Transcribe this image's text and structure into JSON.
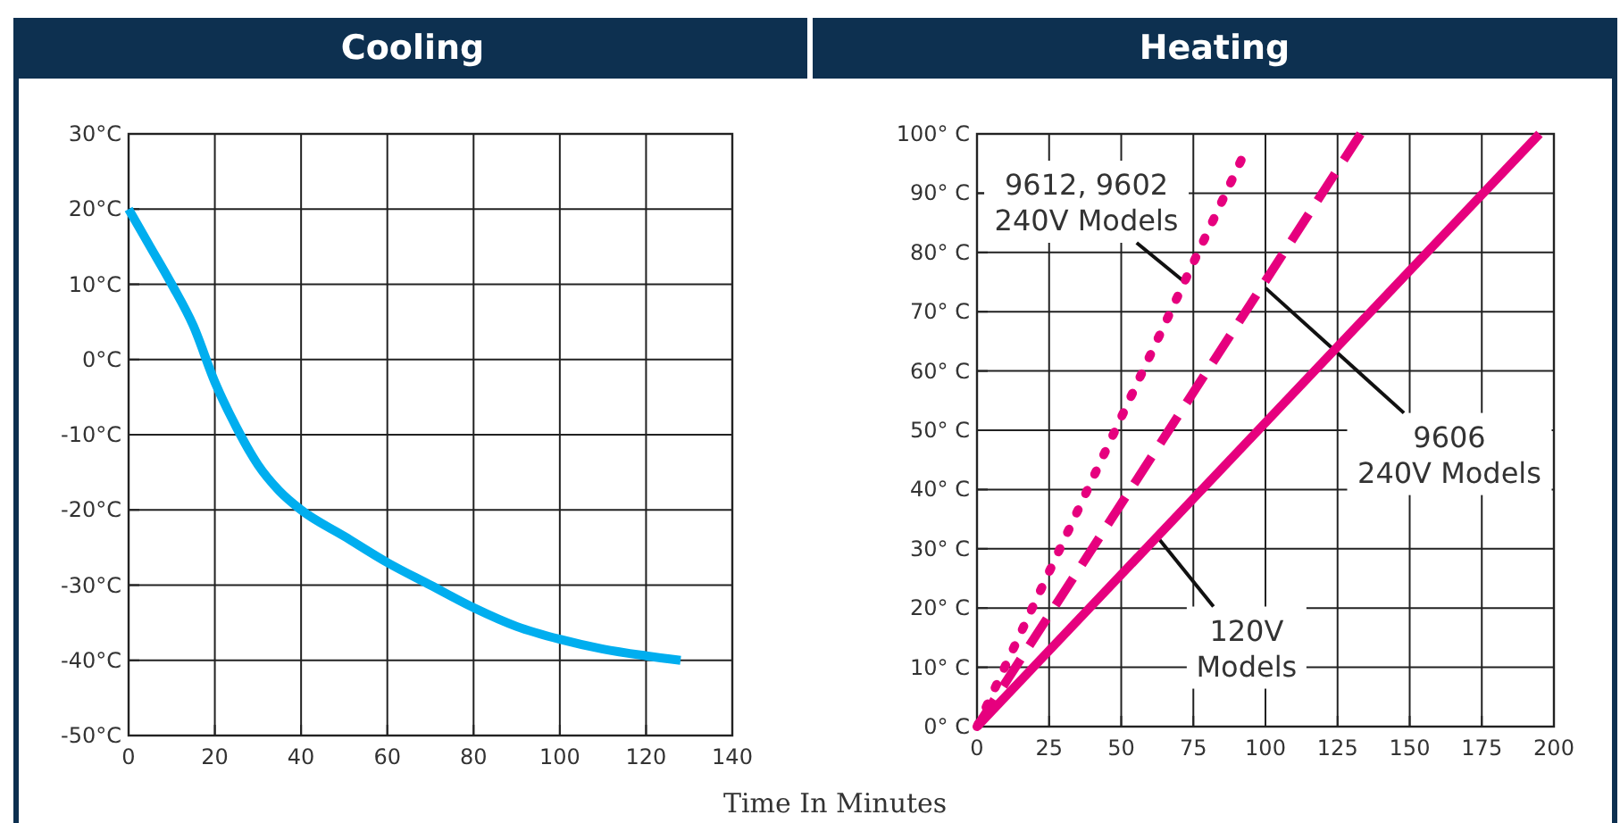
{
  "chart_data": [
    {
      "type": "line",
      "title": "Cooling",
      "xlabel": "Time In Minutes",
      "xlim": [
        0,
        140
      ],
      "xticks": [
        0,
        20,
        40,
        60,
        80,
        100,
        120,
        140
      ],
      "ylim": [
        -50,
        30
      ],
      "yticks": [
        {
          "value": -50,
          "label": "-50°C"
        },
        {
          "value": -40,
          "label": "-40°C"
        },
        {
          "value": -30,
          "label": "-30°C"
        },
        {
          "value": -20,
          "label": "-20°C"
        },
        {
          "value": -10,
          "label": "-10°C"
        },
        {
          "value": 0,
          "label": "0°C"
        },
        {
          "value": 10,
          "label": "10°C"
        },
        {
          "value": 20,
          "label": "20°C"
        },
        {
          "value": 30,
          "label": "30°C"
        }
      ],
      "grid": true,
      "series": [
        {
          "color": "#00aeef",
          "line_style": "solid",
          "x": [
            0,
            5,
            10,
            15,
            20,
            25,
            30,
            35,
            40,
            50,
            60,
            70,
            80,
            90,
            100,
            110,
            120,
            128
          ],
          "values": [
            20,
            15,
            10,
            4.5,
            -3,
            -9,
            -14,
            -17.5,
            -20,
            -23.5,
            -27,
            -30,
            -33,
            -35.5,
            -37.2,
            -38.5,
            -39.4,
            -40
          ]
        }
      ]
    },
    {
      "type": "line",
      "title": "Heating",
      "xlim": [
        0,
        200
      ],
      "xticks": [
        0,
        25,
        50,
        75,
        100,
        125,
        150,
        175,
        200
      ],
      "ylim": [
        0,
        100
      ],
      "yticks": [
        {
          "value": 0,
          "label": "0° C"
        },
        {
          "value": 10,
          "label": "10° C"
        },
        {
          "value": 20,
          "label": "20° C"
        },
        {
          "value": 30,
          "label": "30° C"
        },
        {
          "value": 40,
          "label": "40° C"
        },
        {
          "value": 50,
          "label": "50° C"
        },
        {
          "value": 60,
          "label": "60° C"
        },
        {
          "value": 70,
          "label": "70° C"
        },
        {
          "value": 80,
          "label": "80° C"
        },
        {
          "value": 90,
          "label": "90° C"
        },
        {
          "value": 100,
          "label": "100° C"
        }
      ],
      "grid": true,
      "series": [
        {
          "color": "#e6007e",
          "line_style": "dotted",
          "x": [
            0,
            92
          ],
          "values": [
            0,
            96
          ]
        },
        {
          "color": "#e6007e",
          "line_style": "dashed",
          "x": [
            0,
            133
          ],
          "values": [
            0,
            100
          ]
        },
        {
          "color": "#e6007e",
          "line_style": "solid",
          "x": [
            0,
            195
          ],
          "values": [
            0,
            100
          ]
        }
      ],
      "annotations": [
        {
          "text": "9612, 9602\n240V Models",
          "x": 72,
          "y": 75
        },
        {
          "text": "9606\n240V Models",
          "x": 100,
          "y": 74
        },
        {
          "text": "120V\nModels",
          "x": 62.5,
          "y": 32
        }
      ]
    }
  ]
}
